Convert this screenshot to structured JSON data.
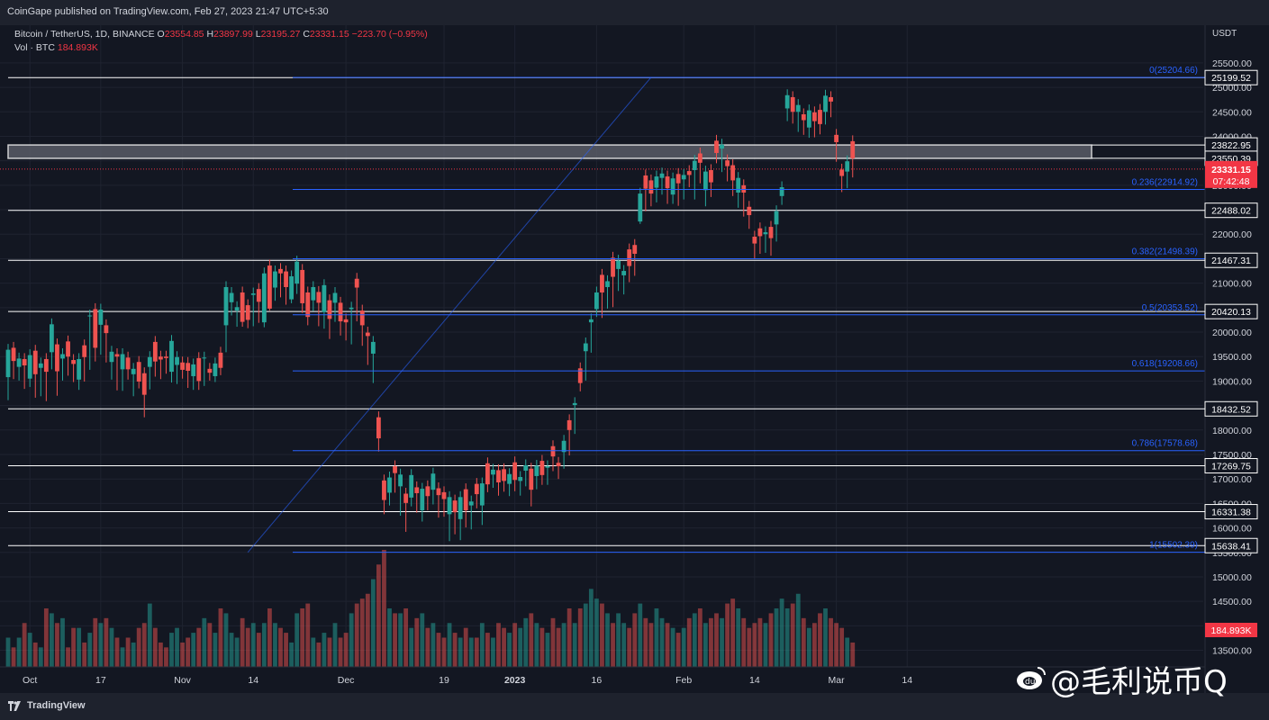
{
  "publisher_line": "CoinGape published on TradingView.com, Feb 27, 2023 21:47 UTC+5:30",
  "legend": {
    "symbol": "Bitcoin / TetherUS, 1D, BINANCE",
    "o_label": "O",
    "o_value": "23554.85",
    "h_label": "H",
    "h_value": "23897.99",
    "l_label": "L",
    "l_value": "23195.27",
    "c_label": "C",
    "c_value": "23331.15",
    "change": "−223.70 (−0.95%)",
    "vol_label": "Vol · BTC",
    "vol_value": "184.893K"
  },
  "footer": {
    "brand": "TradingView"
  },
  "watermark": {
    "text": "@毛利说币Q"
  },
  "colors": {
    "up": "#26a69a",
    "down": "#ef5350",
    "fib": "#2962ff",
    "bg": "#131722",
    "zone": "#5d606b",
    "price_tag": "#f23645"
  },
  "chart_data": {
    "type": "candlestick",
    "currency": "USDT",
    "ylim": [
      13400,
      25700
    ],
    "y_ticks": [
      13500,
      14000,
      14500,
      15000,
      15500,
      16000,
      16500,
      17000,
      17500,
      18000,
      18500,
      19000,
      19500,
      20000,
      20500,
      21000,
      21500,
      22000,
      22500,
      23000,
      23500,
      24000,
      24500,
      25000,
      25500
    ],
    "x_ticks": [
      {
        "label": "Oct",
        "day": 4,
        "bold": false
      },
      {
        "label": "17",
        "day": 17,
        "bold": false
      },
      {
        "label": "Nov",
        "day": 32,
        "bold": false
      },
      {
        "label": "14",
        "day": 45,
        "bold": false
      },
      {
        "label": "Dec",
        "day": 62,
        "bold": false
      },
      {
        "label": "19",
        "day": 80,
        "bold": false
      },
      {
        "label": "2023",
        "day": 93,
        "bold": true
      },
      {
        "label": "16",
        "day": 108,
        "bold": false
      },
      {
        "label": "Feb",
        "day": 124,
        "bold": false
      },
      {
        "label": "14",
        "day": 137,
        "bold": false
      },
      {
        "label": "Mar",
        "day": 152,
        "bold": false
      },
      {
        "label": "14",
        "day": 165,
        "bold": false
      }
    ],
    "support_resistance_levels": [
      25199.52,
      22488.02,
      21467.31,
      20420.13,
      18432.52,
      17269.75,
      16331.38,
      15638.41
    ],
    "resistance_zone": [
      23550.39,
      23822.95
    ],
    "current_price": "23331.15",
    "countdown": "07:42:48",
    "current_volume_label": "184.893K",
    "fib_retracement": [
      {
        "level": "0",
        "price": 25204.66
      },
      {
        "level": "0.236",
        "price": 22914.92
      },
      {
        "level": "0.382",
        "price": 21498.39
      },
      {
        "level": "0.5",
        "price": 20353.52
      },
      {
        "level": "0.618",
        "price": 19208.66
      },
      {
        "level": "0.786",
        "price": 17578.68
      },
      {
        "level": "1",
        "price": 15502.39
      }
    ],
    "trend_line": {
      "from": {
        "day": 44,
        "price": 15502
      },
      "to": {
        "day": 118,
        "price": 25204
      }
    },
    "candles": [
      [
        19080,
        19640,
        19080,
        18650,
        6,
        1
      ],
      [
        19410,
        19680,
        19080,
        19110,
        4,
        0
      ],
      [
        19290,
        19460,
        19150,
        19050,
        6,
        1
      ],
      [
        19320,
        19450,
        18880,
        19290,
        9,
        0
      ],
      [
        19050,
        19530,
        18920,
        19060,
        7,
        1
      ],
      [
        19140,
        19620,
        19060,
        18700,
        5,
        0
      ],
      [
        19270,
        19360,
        19060,
        18730,
        4,
        1
      ],
      [
        19190,
        19450,
        19130,
        18630,
        12,
        0
      ],
      [
        19590,
        20160,
        19280,
        19450,
        11,
        1
      ],
      [
        19200,
        19750,
        19240,
        18740,
        9,
        0
      ],
      [
        19460,
        19550,
        19250,
        19050,
        10,
        1
      ],
      [
        19500,
        19810,
        19420,
        19150,
        4,
        0
      ],
      [
        19350,
        19430,
        19020,
        19180,
        8,
        0
      ],
      [
        19030,
        19450,
        18950,
        18860,
        8,
        1
      ],
      [
        19490,
        19730,
        19450,
        19030,
        5,
        0
      ],
      [
        20330,
        20340,
        20220,
        19270,
        7,
        1
      ],
      [
        19680,
        20470,
        19440,
        19600,
        10,
        0
      ],
      [
        20150,
        20460,
        20070,
        19580,
        9,
        1
      ],
      [
        19980,
        20140,
        19850,
        19420,
        10,
        0
      ],
      [
        19390,
        19600,
        19070,
        19280,
        8,
        1
      ],
      [
        19500,
        19550,
        19360,
        18850,
        6,
        0
      ],
      [
        19240,
        19550,
        19230,
        18840,
        4,
        1
      ],
      [
        19240,
        19480,
        19140,
        19070,
        6,
        0
      ],
      [
        19140,
        19250,
        18730,
        19090,
        5,
        1
      ],
      [
        18990,
        19390,
        18890,
        18900,
        8,
        0
      ],
      [
        18720,
        19160,
        18990,
        18300,
        9,
        0
      ],
      [
        19290,
        19490,
        19290,
        18870,
        13,
        1
      ],
      [
        19400,
        19800,
        19130,
        19260,
        8,
        0
      ],
      [
        19440,
        19500,
        19250,
        19080,
        5,
        0
      ],
      [
        19470,
        19500,
        19250,
        19190,
        4,
        0
      ],
      [
        19190,
        19820,
        19190,
        19010,
        7,
        1
      ],
      [
        19330,
        19490,
        18980,
        19060,
        8,
        1
      ],
      [
        19230,
        19380,
        19090,
        19100,
        5,
        0
      ],
      [
        19210,
        19370,
        19070,
        18900,
        6,
        0
      ],
      [
        19100,
        19340,
        18950,
        18860,
        7,
        1
      ],
      [
        19000,
        19470,
        18950,
        18860,
        8,
        0
      ],
      [
        19480,
        19480,
        19350,
        18940,
        10,
        1
      ],
      [
        19170,
        19250,
        19060,
        19050,
        9,
        0
      ],
      [
        19100,
        19360,
        19060,
        19020,
        7,
        1
      ],
      [
        19270,
        19580,
        19210,
        19160,
        12,
        0
      ],
      [
        20140,
        20920,
        19630,
        20040,
        11,
        1
      ],
      [
        20610,
        20800,
        20520,
        20380,
        7,
        1
      ],
      [
        20440,
        20510,
        20320,
        20150,
        6,
        1
      ],
      [
        20210,
        20810,
        20150,
        20250,
        10,
        0
      ],
      [
        20250,
        20550,
        20310,
        20120,
        8,
        0
      ],
      [
        20760,
        20790,
        20600,
        20160,
        9,
        1
      ],
      [
        20620,
        20880,
        20230,
        20370,
        7,
        0
      ],
      [
        20200,
        21200,
        20520,
        20140,
        9,
        1
      ],
      [
        20480,
        21360,
        20810,
        20500,
        12,
        0
      ],
      [
        20910,
        21240,
        21020,
        20680,
        9,
        1
      ],
      [
        21200,
        21290,
        21170,
        20750,
        8,
        0
      ],
      [
        20920,
        21240,
        20770,
        20600,
        7,
        0
      ],
      [
        20670,
        21140,
        20870,
        20630,
        5,
        1
      ],
      [
        20990,
        21440,
        20820,
        20860,
        11,
        1
      ],
      [
        20590,
        21270,
        20860,
        20430,
        12,
        0
      ],
      [
        20310,
        20810,
        20180,
        20290,
        13,
        0
      ],
      [
        20650,
        20920,
        20600,
        20470,
        6,
        1
      ],
      [
        20600,
        20820,
        20450,
        20160,
        5,
        0
      ],
      [
        20410,
        20960,
        20320,
        20110,
        7,
        1
      ],
      [
        20270,
        20650,
        20210,
        19900,
        6,
        0
      ],
      [
        20600,
        20800,
        20480,
        20250,
        9,
        1
      ],
      [
        20220,
        20600,
        20090,
        19970,
        6,
        0
      ],
      [
        20200,
        20260,
        20100,
        19870,
        7,
        0
      ],
      [
        20470,
        20500,
        20190,
        19790,
        11,
        1
      ],
      [
        20910,
        21090,
        20570,
        20260,
        13,
        0
      ],
      [
        20140,
        20440,
        20070,
        19760,
        14,
        0
      ],
      [
        19920,
        19990,
        19900,
        19370,
        15,
        0
      ],
      [
        19560,
        19800,
        19640,
        19000,
        18,
        1
      ],
      [
        17830,
        18260,
        18010,
        17600,
        21,
        0
      ],
      [
        16570,
        16970,
        16680,
        16320,
        24,
        0
      ],
      [
        16720,
        17030,
        16680,
        16500,
        12,
        1
      ],
      [
        17120,
        17260,
        17070,
        16760,
        11,
        0
      ],
      [
        16850,
        17090,
        16690,
        16290,
        11,
        1
      ],
      [
        16510,
        16700,
        16590,
        15960,
        12,
        0
      ],
      [
        16620,
        17080,
        16680,
        16480,
        8,
        1
      ],
      [
        16710,
        16830,
        16790,
        16350,
        10,
        0
      ],
      [
        16360,
        16800,
        16500,
        16170,
        11,
        1
      ],
      [
        16650,
        16850,
        16510,
        16400,
        8,
        0
      ],
      [
        16780,
        17110,
        16920,
        16520,
        9,
        1
      ],
      [
        16670,
        16810,
        16500,
        16250,
        7,
        0
      ],
      [
        16590,
        16730,
        16500,
        16270,
        6,
        0
      ],
      [
        16280,
        16630,
        16250,
        15770,
        9,
        1
      ],
      [
        16320,
        16560,
        16240,
        15910,
        7,
        0
      ],
      [
        16180,
        16630,
        16190,
        15790,
        6,
        1
      ],
      [
        16360,
        16790,
        16480,
        16050,
        8,
        0
      ],
      [
        16460,
        16540,
        16420,
        16010,
        6,
        1
      ],
      [
        16690,
        16900,
        16790,
        16440,
        6,
        0
      ],
      [
        16460,
        16910,
        16350,
        16100,
        9,
        1
      ],
      [
        16890,
        17320,
        17170,
        16770,
        7,
        0
      ],
      [
        17190,
        17090,
        16870,
        16860,
        6,
        1
      ],
      [
        16930,
        17180,
        16950,
        16700,
        9,
        0
      ],
      [
        16960,
        17200,
        16960,
        16780,
        8,
        0
      ],
      [
        16900,
        17100,
        16920,
        16690,
        7,
        1
      ],
      [
        16980,
        17340,
        17020,
        16790,
        9,
        0
      ],
      [
        16960,
        17040,
        16760,
        16700,
        8,
        1
      ],
      [
        17170,
        17280,
        16980,
        16890,
        10,
        1
      ],
      [
        16780,
        17210,
        16730,
        16480,
        11,
        0
      ],
      [
        17060,
        17270,
        17030,
        16830,
        9,
        1
      ],
      [
        17080,
        17370,
        17240,
        16920,
        8,
        0
      ],
      [
        17230,
        17260,
        17220,
        16920,
        7,
        1
      ],
      [
        17460,
        17670,
        17380,
        17200,
        10,
        0
      ],
      [
        17260,
        17330,
        17290,
        17040,
        8,
        0
      ],
      [
        17550,
        17780,
        17530,
        17250,
        9,
        1
      ],
      [
        18000,
        18200,
        17920,
        17520,
        12,
        0
      ],
      [
        18550,
        18510,
        17990,
        17960,
        9,
        1
      ],
      [
        18960,
        19260,
        19040,
        18830,
        12,
        0
      ],
      [
        19610,
        19770,
        19690,
        19050,
        13,
        1
      ],
      [
        20200,
        20260,
        19900,
        19620,
        16,
        1
      ],
      [
        20470,
        20810,
        20520,
        20350,
        14,
        1
      ],
      [
        20810,
        21170,
        20760,
        20330,
        13,
        0
      ],
      [
        20920,
        21040,
        20720,
        20520,
        11,
        1
      ],
      [
        21130,
        21520,
        21150,
        20550,
        9,
        0
      ],
      [
        21290,
        21460,
        21270,
        20880,
        11,
        1
      ],
      [
        21160,
        21250,
        21170,
        20810,
        9,
        1
      ],
      [
        21350,
        21690,
        21420,
        21060,
        8,
        0
      ],
      [
        21600,
        21780,
        21330,
        21190,
        11,
        0
      ],
      [
        22260,
        22830,
        22660,
        22250,
        13,
        1
      ],
      [
        22930,
        23200,
        22720,
        22510,
        10,
        0
      ],
      [
        22830,
        23100,
        22900,
        22610,
        9,
        0
      ],
      [
        22950,
        23180,
        22930,
        22690,
        12,
        1
      ],
      [
        23150,
        23240,
        23050,
        22850,
        10,
        1
      ],
      [
        22940,
        23180,
        22880,
        22660,
        9,
        0
      ],
      [
        22810,
        23140,
        22810,
        22660,
        8,
        1
      ],
      [
        23040,
        23230,
        23010,
        22620,
        7,
        0
      ],
      [
        23120,
        23210,
        23100,
        22750,
        8,
        1
      ],
      [
        23210,
        23290,
        23110,
        23000,
        10,
        0
      ],
      [
        23310,
        23500,
        23070,
        22750,
        11,
        1
      ],
      [
        23460,
        23650,
        23380,
        23080,
        12,
        0
      ],
      [
        22900,
        23280,
        22900,
        22610,
        9,
        1
      ],
      [
        23060,
        23310,
        23050,
        22800,
        10,
        0
      ],
      [
        23660,
        23910,
        23810,
        23490,
        11,
        0
      ],
      [
        23750,
        23830,
        23390,
        23310,
        10,
        1
      ],
      [
        23390,
        23510,
        23250,
        23120,
        13,
        0
      ],
      [
        23100,
        23410,
        23010,
        22820,
        14,
        0
      ],
      [
        22850,
        23150,
        22810,
        22580,
        12,
        1
      ],
      [
        22850,
        23000,
        22780,
        22400,
        10,
        0
      ],
      [
        22390,
        22560,
        22350,
        22150,
        8,
        0
      ],
      [
        21810,
        21950,
        21760,
        21540,
        9,
        0
      ],
      [
        21960,
        22120,
        21970,
        21640,
        10,
        0
      ],
      [
        22000,
        22040,
        21930,
        21660,
        9,
        1
      ],
      [
        21920,
        22150,
        21920,
        21600,
        11,
        0
      ],
      [
        22200,
        22470,
        22240,
        21890,
        12,
        1
      ],
      [
        22780,
        22960,
        22840,
        22640,
        14,
        1
      ],
      [
        24570,
        24840,
        24500,
        24350,
        12,
        1
      ],
      [
        24500,
        24800,
        24540,
        24300,
        13,
        0
      ],
      [
        24500,
        24640,
        24480,
        24130,
        15,
        1
      ],
      [
        24330,
        24450,
        24240,
        24070,
        10,
        0
      ],
      [
        24180,
        24530,
        24260,
        24010,
        8,
        1
      ],
      [
        24310,
        24490,
        24210,
        24020,
        9,
        0
      ],
      [
        24250,
        24540,
        24200,
        24080,
        11,
        0
      ],
      [
        24500,
        24830,
        24500,
        24280,
        12,
        1
      ],
      [
        24710,
        24800,
        24590,
        24430,
        10,
        0
      ],
      [
        23880,
        24030,
        23640,
        23520,
        9,
        0
      ],
      [
        23190,
        23320,
        23080,
        22900,
        8,
        0
      ],
      [
        23280,
        23490,
        23250,
        22980,
        6,
        1
      ],
      [
        23550,
        23900,
        23200,
        23330,
        5,
        0
      ]
    ]
  }
}
